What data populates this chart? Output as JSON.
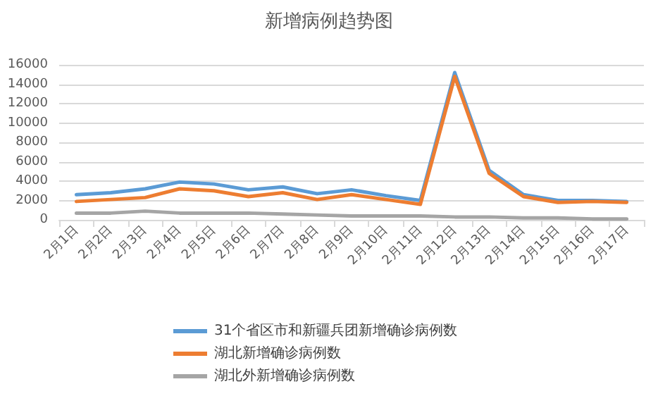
{
  "chart_data": {
    "type": "line",
    "title": "新增病例趋势图",
    "categories": [
      "2月1日",
      "2月2日",
      "2月3日",
      "2月4日",
      "2月5日",
      "2月6日",
      "2月7日",
      "2月8日",
      "2月9日",
      "2月10日",
      "2月11日",
      "2月12日",
      "2月13日",
      "2月14日",
      "2月15日",
      "2月16日",
      "2月17日"
    ],
    "series": [
      {
        "name": "31个省区市和新疆兵团新增确诊病例数",
        "color": "#5b9bd5",
        "values": [
          2600,
          2800,
          3200,
          3900,
          3700,
          3100,
          3400,
          2700,
          3100,
          2500,
          2000,
          15200,
          5100,
          2600,
          2000,
          2000,
          1900
        ]
      },
      {
        "name": "湖北新增确诊病例数",
        "color": "#ed7d31",
        "values": [
          1900,
          2100,
          2300,
          3200,
          3000,
          2400,
          2800,
          2100,
          2600,
          2100,
          1600,
          14800,
          4800,
          2400,
          1800,
          1900,
          1800
        ]
      },
      {
        "name": "湖北外新增确诊病例数",
        "color": "#a5a5a5",
        "values": [
          700,
          700,
          900,
          700,
          700,
          700,
          600,
          500,
          400,
          400,
          400,
          300,
          300,
          200,
          200,
          100,
          100
        ]
      }
    ],
    "ylim": [
      0,
      16000
    ],
    "yticks": [
      0,
      2000,
      4000,
      6000,
      8000,
      10000,
      12000,
      14000,
      16000
    ],
    "grid": "y",
    "legend": "bottom",
    "marker": "none",
    "line_style": "solid"
  }
}
